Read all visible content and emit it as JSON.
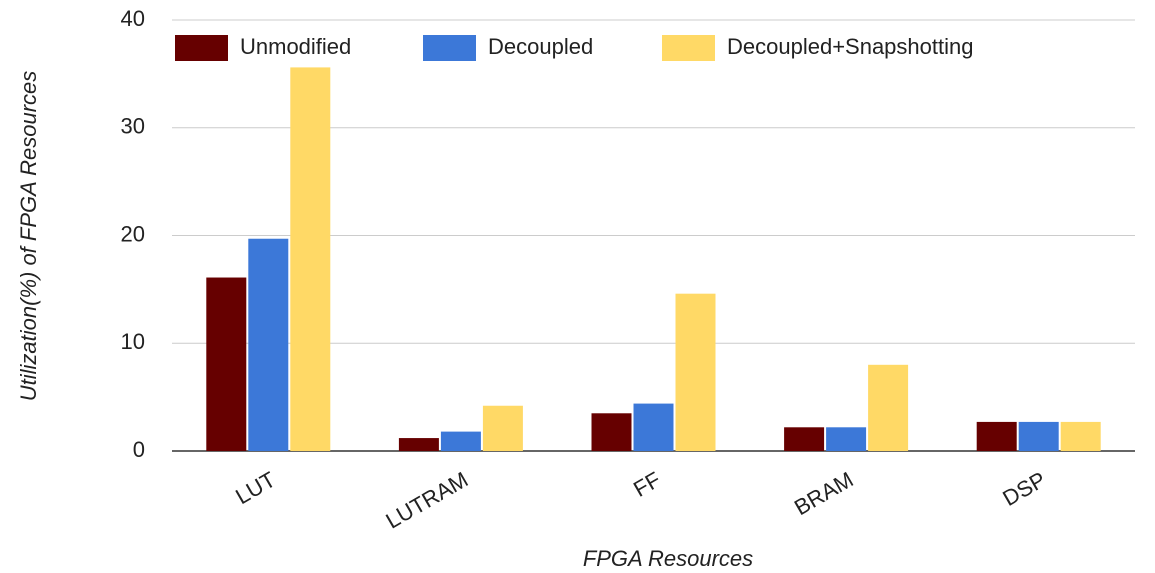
{
  "chart_data": {
    "type": "bar",
    "x_label": "FPGA Resources",
    "y_label": "Utilization(%) of FPGA Resources",
    "categories": [
      "LUT",
      "LUTRAM",
      "FF",
      "BRAM",
      "DSP"
    ],
    "series": [
      {
        "name": "Unmodified",
        "color": "#660000",
        "values": [
          16.1,
          1.2,
          3.5,
          2.2,
          2.7
        ]
      },
      {
        "name": "Decoupled",
        "color": "#3c78d8",
        "values": [
          19.7,
          1.8,
          4.4,
          2.2,
          2.7
        ]
      },
      {
        "name": "Decoupled+Snapshotting",
        "color": "#ffd966",
        "values": [
          35.6,
          4.2,
          14.6,
          8.0,
          2.7
        ]
      }
    ],
    "ylim": [
      0,
      40
    ],
    "yticks": [
      0,
      10,
      20,
      30,
      40
    ],
    "grid": true,
    "legend": "top"
  }
}
